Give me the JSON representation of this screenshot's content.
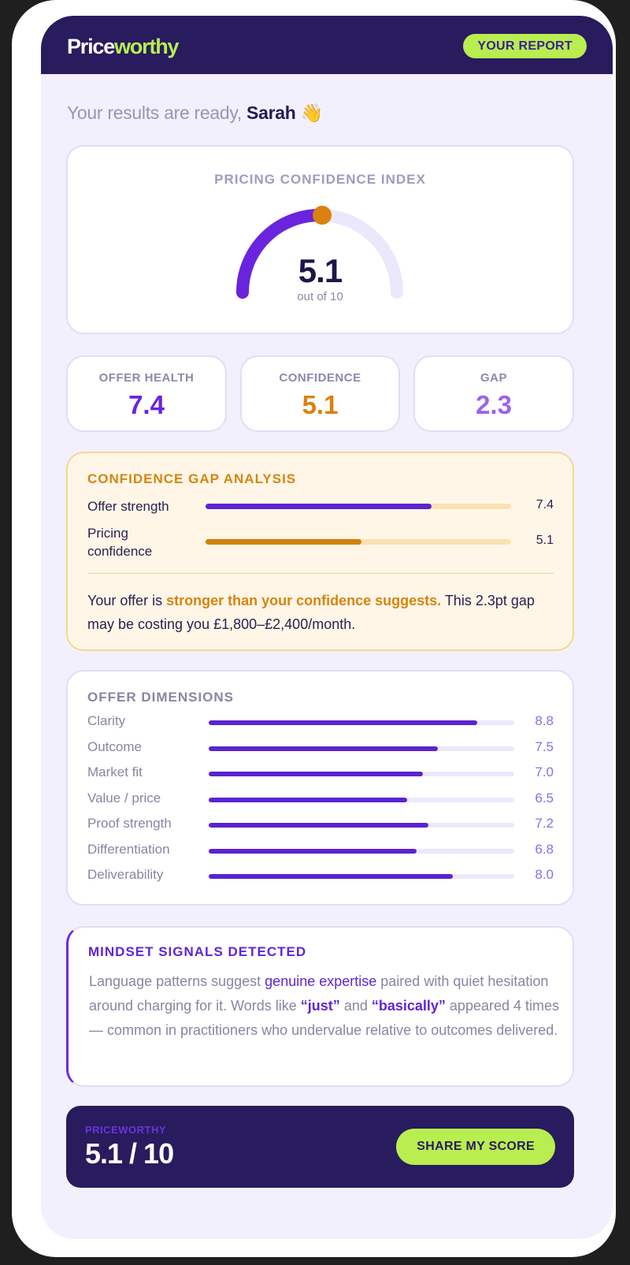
{
  "header": {
    "logo_part1": "Price",
    "logo_part2": "worthy",
    "badge": "YOUR REPORT"
  },
  "greeting": {
    "prefix": "Your results are ready,",
    "name": "Sarah",
    "emoji": "👋"
  },
  "index": {
    "title": "PRICING CONFIDENCE INDEX",
    "value": "5.1",
    "max_label": "out of 10",
    "score": 5.1,
    "max": 10
  },
  "stats": [
    {
      "label": "OFFER HEALTH",
      "value": "7.4",
      "color": "#6a24dd"
    },
    {
      "label": "CONFIDENCE",
      "value": "5.1",
      "color": "#d98211"
    },
    {
      "label": "GAP",
      "value": "2.3",
      "color": "#9a63ec"
    }
  ],
  "gap_analysis": {
    "title": "CONFIDENCE GAP ANALYSIS",
    "rows": [
      {
        "label": "Offer strength",
        "value": "7.4",
        "fraction": 0.74,
        "color": "#5a24cf"
      },
      {
        "label": "Pricing confidence",
        "value": "5.1",
        "fraction": 0.51,
        "color": "#d4800d"
      }
    ],
    "text_before": "Your offer is ",
    "text_highlight": "stronger than your confidence suggests.",
    "text_after": " This 2.3pt gap may be costing you £1,800–£2,400/month."
  },
  "dimensions": {
    "title": "OFFER DIMENSIONS",
    "items": [
      {
        "label": "Clarity",
        "value": "8.8",
        "fraction": 0.88
      },
      {
        "label": "Outcome",
        "value": "7.5",
        "fraction": 0.75
      },
      {
        "label": "Market fit",
        "value": "7.0",
        "fraction": 0.7
      },
      {
        "label": "Value / price",
        "value": "6.5",
        "fraction": 0.65
      },
      {
        "label": "Proof strength",
        "value": "7.2",
        "fraction": 0.72
      },
      {
        "label": "Differentiation",
        "value": "6.8",
        "fraction": 0.68
      },
      {
        "label": "Deliverability",
        "value": "8.0",
        "fraction": 0.8
      }
    ]
  },
  "mindset": {
    "title": "MINDSET SIGNALS DETECTED",
    "t1": "Language patterns suggest ",
    "h1": "genuine expertise",
    "t2": " paired with quiet hesitation around charging for it. Words like ",
    "q1": "“just”",
    "t3": " and ",
    "q2": "“basically”",
    "t4": " appeared 4 times — common in practitioners who undervalue relative to outcomes delivered."
  },
  "footer": {
    "brand": "PRICEWORTHY",
    "score": "5.1 / 10",
    "share_label": "SHARE MY SCORE"
  },
  "colors": {
    "brand_dark": "#281b5e",
    "accent_lime": "#b8ee4f",
    "accent_purple": "#5a24cf",
    "accent_orange": "#d98211"
  }
}
